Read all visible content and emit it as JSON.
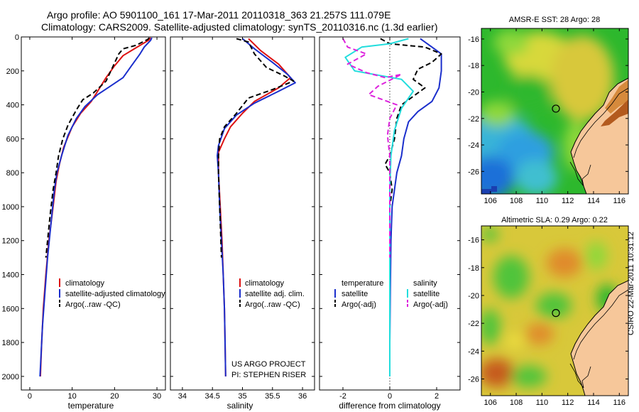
{
  "header": {
    "line1": "Argo profile: AO 5901100_161 17-Mar-2011 20110318_363 21.257S 111.079E",
    "line2": "Climatology: CARS2009. Satellite-adjusted climatology: synTS_20110316.nc (1.3d earlier)"
  },
  "credit": "CSIRO 22-Mar-2011 10:31:12",
  "colors": {
    "red": "#dd1111",
    "blue": "#1a2ecc",
    "black": "#000000",
    "cyan": "#22dddd",
    "magenta": "#dd22dd"
  },
  "chart_data": [
    {
      "type": "line",
      "panel": "temperature",
      "xlabel": "temperature",
      "ylabel": "",
      "xlim": [
        -2,
        32
      ],
      "ylim": [
        2080,
        0
      ],
      "xticks": [
        0,
        10,
        20,
        30
      ],
      "yticks": [
        0,
        200,
        400,
        600,
        800,
        1000,
        1200,
        1400,
        1600,
        1800,
        2000
      ],
      "legend": [
        "climatology",
        "satellite-adjusted climatology",
        "Argo(..raw -QC)"
      ],
      "legend_loc": "lower-right",
      "series": [
        {
          "name": "climatology",
          "color": "red",
          "dash": false,
          "points": [
            [
              28.5,
              5
            ],
            [
              28,
              20
            ],
            [
              26,
              50
            ],
            [
              24,
              80
            ],
            [
              22,
              110
            ],
            [
              20,
              170
            ],
            [
              18,
              240
            ],
            [
              16,
              320
            ],
            [
              14.5,
              380
            ],
            [
              12,
              450
            ],
            [
              10,
              530
            ],
            [
              8,
              650
            ],
            [
              7,
              750
            ],
            [
              6.2,
              850
            ],
            [
              5.5,
              1000
            ],
            [
              4.5,
              1200
            ],
            [
              3.8,
              1400
            ],
            [
              3.2,
              1600
            ],
            [
              2.8,
              1800
            ],
            [
              2.5,
              2000
            ]
          ]
        },
        {
          "name": "satellite-adjusted climatology",
          "color": "blue",
          "dash": false,
          "points": [
            [
              28.8,
              5
            ],
            [
              28.5,
              20
            ],
            [
              27,
              60
            ],
            [
              26,
              100
            ],
            [
              24,
              170
            ],
            [
              22,
              240
            ],
            [
              19,
              290
            ],
            [
              16,
              340
            ],
            [
              13,
              410
            ],
            [
              11,
              480
            ],
            [
              9,
              580
            ],
            [
              7.5,
              700
            ],
            [
              6.4,
              800
            ],
            [
              5.8,
              900
            ],
            [
              5,
              1100
            ],
            [
              4.2,
              1300
            ],
            [
              3.6,
              1500
            ],
            [
              3,
              1700
            ],
            [
              2.7,
              1850
            ],
            [
              2.4,
              2000
            ]
          ]
        },
        {
          "name": "Argo(..raw -QC)",
          "color": "black",
          "dash": true,
          "points": [
            [
              28.2,
              5
            ],
            [
              27.8,
              15
            ],
            [
              25,
              50
            ],
            [
              22,
              70
            ],
            [
              21,
              100
            ],
            [
              19.5,
              180
            ],
            [
              18,
              260
            ],
            [
              15,
              330
            ],
            [
              12.5,
              370
            ],
            [
              11,
              430
            ],
            [
              9,
              520
            ],
            [
              7.8,
              600
            ],
            [
              6.8,
              700
            ],
            [
              6.2,
              800
            ],
            [
              5.5,
              900
            ],
            [
              4.8,
              1050
            ],
            [
              4.2,
              1200
            ],
            [
              3.8,
              1300
            ]
          ]
        }
      ]
    },
    {
      "type": "line",
      "panel": "salinity",
      "xlabel": "salinity",
      "ylabel": "",
      "xlim": [
        33.8,
        36.2
      ],
      "ylim": [
        2080,
        0
      ],
      "xticks": [
        34,
        34.5,
        35,
        35.5,
        36
      ],
      "yticks": [],
      "legend": [
        "climatology",
        "satellite adj. clim.",
        "Argo(..raw -QC)"
      ],
      "legend_loc": "lower-right",
      "annotation": [
        "US ARGO PROJECT",
        "PI: STEPHEN RISER"
      ],
      "series": [
        {
          "name": "climatology",
          "color": "red",
          "dash": false,
          "points": [
            [
              35.1,
              10
            ],
            [
              35.3,
              80
            ],
            [
              35.6,
              160
            ],
            [
              35.8,
              240
            ],
            [
              35.6,
              300
            ],
            [
              35.2,
              380
            ],
            [
              35,
              450
            ],
            [
              34.8,
              530
            ],
            [
              34.7,
              600
            ],
            [
              34.6,
              680
            ],
            [
              34.6,
              800
            ],
            [
              34.63,
              1000
            ],
            [
              34.66,
              1200
            ],
            [
              34.68,
              1400
            ],
            [
              34.7,
              1600
            ],
            [
              34.71,
              1800
            ],
            [
              34.72,
              2000
            ]
          ]
        },
        {
          "name": "satellite adj. clim.",
          "color": "blue",
          "dash": false,
          "points": [
            [
              35,
              10
            ],
            [
              35.2,
              70
            ],
            [
              35.5,
              150
            ],
            [
              35.75,
              220
            ],
            [
              35.88,
              270
            ],
            [
              35.6,
              320
            ],
            [
              35.2,
              390
            ],
            [
              34.9,
              460
            ],
            [
              34.7,
              540
            ],
            [
              34.6,
              640
            ],
            [
              34.58,
              700
            ],
            [
              34.6,
              800
            ],
            [
              34.62,
              1000
            ],
            [
              34.65,
              1200
            ],
            [
              34.68,
              1400
            ],
            [
              34.7,
              1600
            ],
            [
              34.71,
              1800
            ],
            [
              34.72,
              2000
            ]
          ]
        },
        {
          "name": "Argo(..raw -QC)",
          "color": "black",
          "dash": true,
          "points": [
            [
              34.9,
              10
            ],
            [
              35.1,
              30
            ],
            [
              35.2,
              100
            ],
            [
              35.4,
              180
            ],
            [
              35.7,
              230
            ],
            [
              35.85,
              260
            ],
            [
              35.5,
              310
            ],
            [
              35.1,
              360
            ],
            [
              34.9,
              450
            ],
            [
              34.7,
              530
            ],
            [
              34.62,
              600
            ],
            [
              34.6,
              700
            ],
            [
              34.6,
              800
            ],
            [
              34.62,
              1000
            ],
            [
              34.64,
              1200
            ],
            [
              34.65,
              1300
            ]
          ]
        }
      ]
    },
    {
      "type": "line",
      "panel": "difference",
      "xlabel": "difference from climatology",
      "ylabel": "",
      "xlim": [
        -3,
        3
      ],
      "ylim": [
        2080,
        0
      ],
      "xticks": [
        -2,
        0,
        2
      ],
      "yticks": [],
      "legend_groups": [
        {
          "title": "temperature",
          "items": [
            "satellite",
            "Argo(-adj)"
          ]
        },
        {
          "title": "salinity",
          "items": [
            "satellite",
            "Argo(-adj)"
          ]
        }
      ],
      "legend_loc": "lower-center",
      "series": [
        {
          "name": "temperature satellite",
          "color": "blue",
          "dash": false,
          "points": [
            [
              1.3,
              10
            ],
            [
              1.8,
              60
            ],
            [
              2.2,
              100
            ],
            [
              2.2,
              200
            ],
            [
              2.1,
              300
            ],
            [
              1.8,
              380
            ],
            [
              1.2,
              440
            ],
            [
              0.8,
              500
            ],
            [
              0.6,
              600
            ],
            [
              0.5,
              700
            ],
            [
              0.3,
              800
            ],
            [
              0.2,
              900
            ],
            [
              0.1,
              1000
            ],
            [
              0.05,
              1200
            ],
            [
              0.02,
              1500
            ],
            [
              0,
              1800
            ],
            [
              0,
              2000
            ]
          ]
        },
        {
          "name": "temperature Argo(-adj)",
          "color": "black",
          "dash": true,
          "points": [
            [
              -0.4,
              10
            ],
            [
              0,
              40
            ],
            [
              1.5,
              60
            ],
            [
              2.2,
              100
            ],
            [
              1.8,
              150
            ],
            [
              1.2,
              190
            ],
            [
              1,
              250
            ],
            [
              1.5,
              300
            ],
            [
              1,
              350
            ],
            [
              0.5,
              400
            ],
            [
              0.3,
              480
            ],
            [
              0.2,
              600
            ],
            [
              0,
              700
            ],
            [
              -0.2,
              750
            ],
            [
              0,
              800
            ],
            [
              0.1,
              900
            ],
            [
              0,
              1000
            ],
            [
              0,
              1300
            ]
          ]
        },
        {
          "name": "salinity satellite",
          "color": "cyan",
          "dash": false,
          "points": [
            [
              0.8,
              10
            ],
            [
              0,
              40
            ],
            [
              -1.2,
              60
            ],
            [
              -1.9,
              120
            ],
            [
              -1.5,
              200
            ],
            [
              0.5,
              250
            ],
            [
              1,
              320
            ],
            [
              0.5,
              420
            ],
            [
              0.2,
              550
            ],
            [
              0.05,
              700
            ],
            [
              0,
              900
            ],
            [
              0,
              1200
            ],
            [
              0,
              1500
            ],
            [
              0,
              1800
            ],
            [
              0,
              2000
            ]
          ]
        },
        {
          "name": "salinity Argo(-adj)",
          "color": "magenta",
          "dash": true,
          "points": [
            [
              -2,
              10
            ],
            [
              -1.8,
              60
            ],
            [
              -1,
              100
            ],
            [
              -1.8,
              160
            ],
            [
              -1,
              210
            ],
            [
              -0.2,
              240
            ],
            [
              0.5,
              220
            ],
            [
              -0.5,
              290
            ],
            [
              -0.9,
              340
            ],
            [
              0.3,
              400
            ],
            [
              0,
              480
            ],
            [
              -0.1,
              580
            ],
            [
              0,
              700
            ],
            [
              0,
              800
            ],
            [
              0,
              1000
            ],
            [
              0,
              1300
            ]
          ]
        }
      ]
    },
    {
      "type": "heatmap",
      "panel": "map-sst",
      "title": "AMSR-E SST: 28 Argo: 28",
      "xticks": [
        106,
        108,
        110,
        112,
        114,
        116
      ],
      "yticks": [
        -16,
        -18,
        -20,
        -22,
        -24,
        -26
      ],
      "xlim": [
        105.3,
        116.7
      ],
      "ylim": [
        -27.7,
        -15.2
      ],
      "marker": [
        111.08,
        -21.26
      ]
    },
    {
      "type": "heatmap",
      "panel": "map-sla",
      "title": "Altimetric SLA: 0.29 Argo: 0.22",
      "xticks": [
        106,
        108,
        110,
        112,
        114,
        116
      ],
      "yticks": [
        -16,
        -18,
        -20,
        -22,
        -24,
        -26
      ],
      "xlim": [
        105.3,
        116.7
      ],
      "ylim": [
        -27.2,
        -15
      ],
      "marker": [
        111.08,
        -21.26
      ]
    }
  ]
}
